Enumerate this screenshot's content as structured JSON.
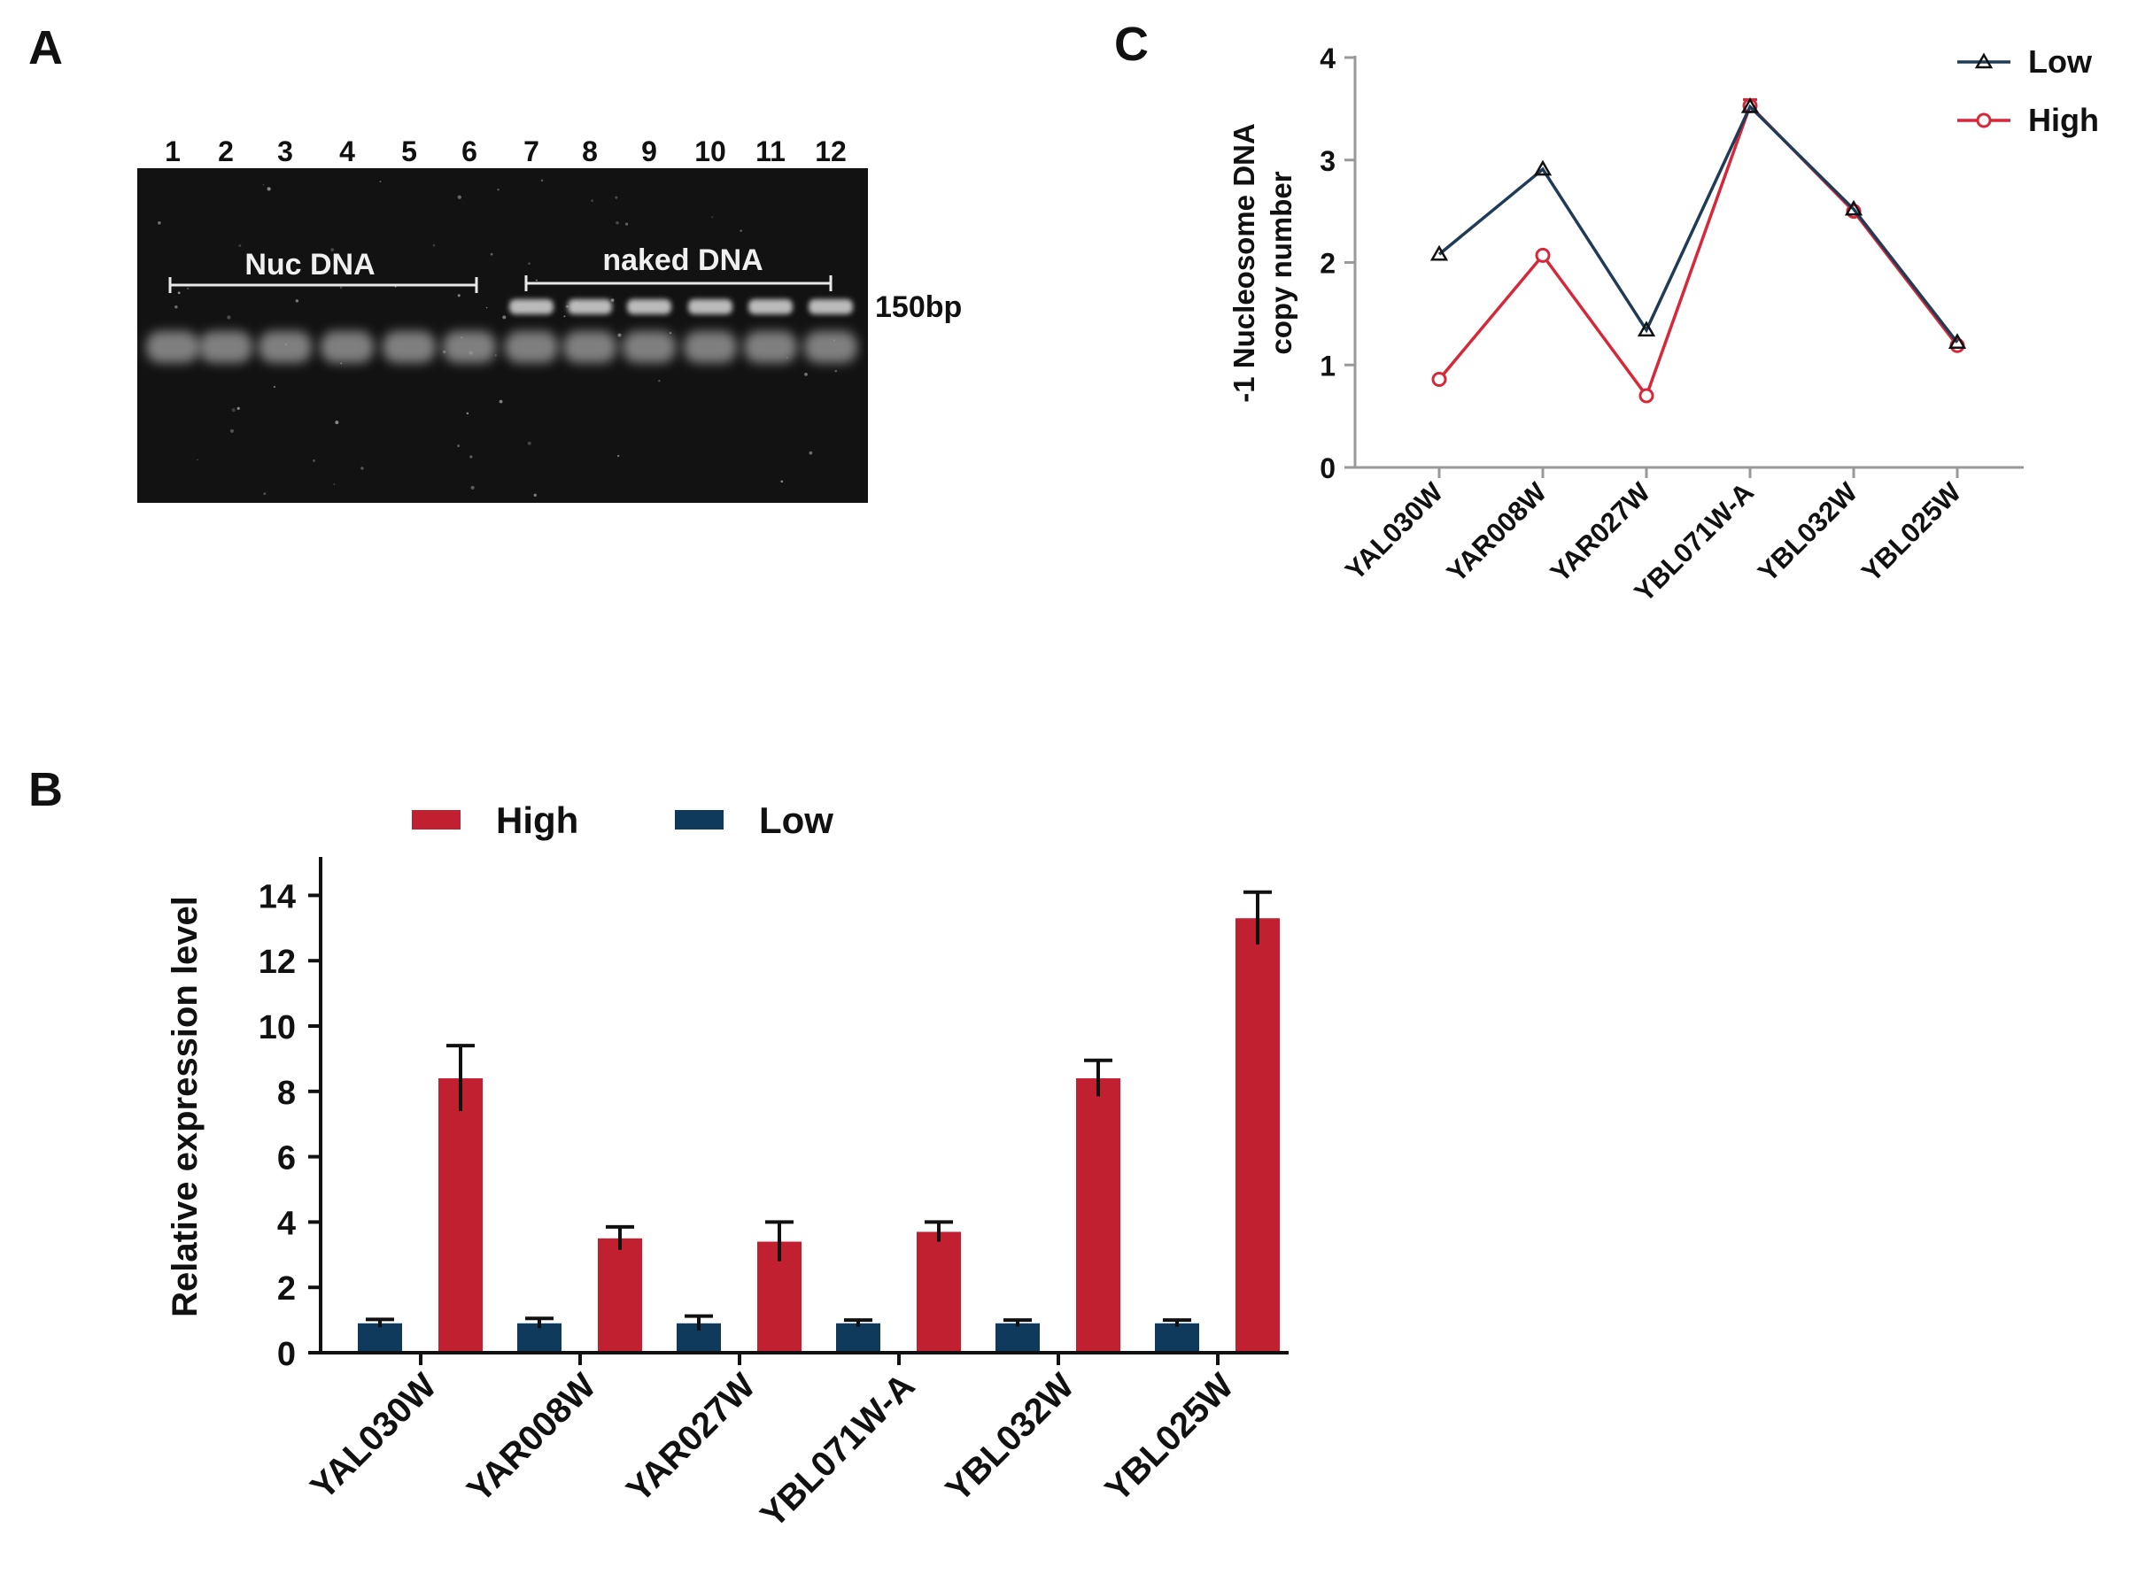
{
  "panels": {
    "a": {
      "letter": "A"
    },
    "b": {
      "letter": "B"
    },
    "c": {
      "letter": "C"
    }
  },
  "gel": {
    "lane_numbers": [
      "1",
      "2",
      "3",
      "4",
      "5",
      "6",
      "7",
      "8",
      "9",
      "10",
      "11",
      "12"
    ],
    "group_labels": [
      "Nuc DNA",
      "naked DNA"
    ],
    "marker_label": "150bp",
    "background_color": "#121212",
    "band_color": "#d9d9d9"
  },
  "chart_data": [
    {
      "type": "line",
      "panel": "C",
      "title": "",
      "xlabel": "",
      "ylabel_lines": [
        "-1 Nucleosome DNA",
        "copy number"
      ],
      "categories": [
        "YAL030W",
        "YAR008W",
        "YAR027W",
        "YBL071W-A",
        "YBL032W",
        "YBL025W"
      ],
      "ylim": [
        0,
        4
      ],
      "yticks": [
        "0",
        "1",
        "2",
        "3",
        "4"
      ],
      "grid": false,
      "legend": "top-right",
      "series": [
        {
          "name": "Low",
          "marker": "triangle",
          "color": "#1f3b57",
          "values": [
            2.08,
            2.91,
            1.34,
            3.52,
            2.52,
            1.22
          ],
          "errors": [
            0.0,
            0.0,
            0.0,
            0.0,
            0.0,
            0.0
          ]
        },
        {
          "name": "High",
          "marker": "circle",
          "color": "#d62839",
          "values": [
            0.86,
            2.07,
            0.7,
            3.53,
            2.5,
            1.19
          ],
          "errors": [
            0.0,
            0.0,
            0.0,
            0.06,
            0.0,
            0.0
          ]
        }
      ]
    },
    {
      "type": "bar",
      "panel": "B",
      "title": "",
      "xlabel": "",
      "ylabel": "Relative expression level",
      "categories": [
        "YAL030W",
        "YAR008W",
        "YAR027W",
        "YBL071W-A",
        "YBL032W",
        "YBL025W"
      ],
      "ylim": [
        0,
        15
      ],
      "yticks": [
        "0",
        "2",
        "4",
        "6",
        "8",
        "10",
        "12",
        "14"
      ],
      "grid": false,
      "legend": "top-left",
      "legend_order": [
        "High",
        "Low"
      ],
      "series": [
        {
          "name": "Low",
          "color": "#0f3a5c",
          "values": [
            0.9,
            0.9,
            0.9,
            0.9,
            0.9,
            0.9
          ],
          "errors": [
            0.12,
            0.15,
            0.22,
            0.1,
            0.1,
            0.1
          ]
        },
        {
          "name": "High",
          "color": "#c0202f",
          "values": [
            8.4,
            3.5,
            3.4,
            3.7,
            8.4,
            13.3
          ],
          "errors": [
            1.0,
            0.35,
            0.6,
            0.3,
            0.55,
            0.8
          ]
        }
      ]
    }
  ]
}
